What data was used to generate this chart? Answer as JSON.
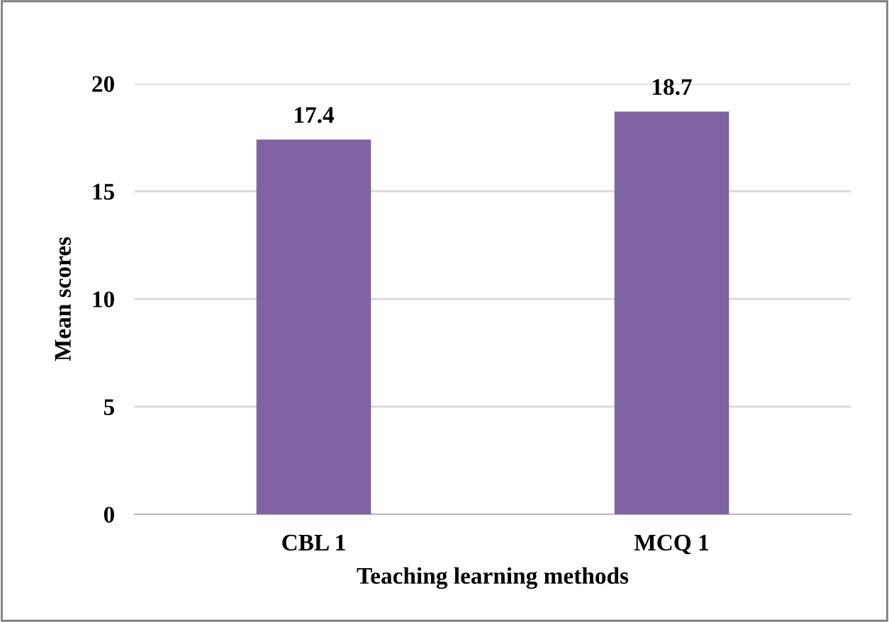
{
  "chart_data": {
    "type": "bar",
    "xlabel": "Teaching learning methods",
    "ylabel": "Mean scores",
    "categories": [
      "CBL 1",
      "MCQ 1"
    ],
    "values": [
      17.4,
      18.7
    ],
    "color": "#8064a2",
    "ylim": [
      0,
      20
    ],
    "yticks": [
      0,
      5,
      10,
      15,
      20
    ],
    "grid": "y",
    "data_labels": true
  }
}
